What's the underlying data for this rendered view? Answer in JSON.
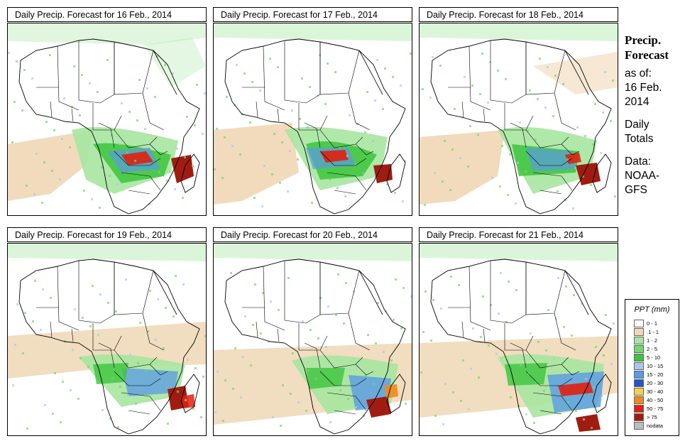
{
  "panels": [
    {
      "title": "Daily Precip. Forecast for  16 Feb., 2014"
    },
    {
      "title": "Daily Precip. Forecast for  17 Feb., 2014"
    },
    {
      "title": "Daily Precip. Forecast for  18 Feb., 2014"
    },
    {
      "title": "Daily Precip. Forecast for  19 Feb., 2014"
    },
    {
      "title": "Daily Precip. Forecast for  20 Feb., 2014"
    },
    {
      "title": "Daily Precip. Forecast for  21 Feb., 2014"
    }
  ],
  "info": {
    "title_line1": "Precip.",
    "title_line2": "Forecast",
    "asof": "as of:",
    "date_line1": "16 Feb.",
    "date_line2": "2014",
    "daily_line1": "Daily",
    "daily_line2": "Totals",
    "data_line1": "Data:",
    "data_line2": "NOAA-",
    "data_line3": "GFS"
  },
  "legend": {
    "title": "PPT (mm)",
    "items": [
      {
        "label": "0 - 1",
        "color": "#ffffff"
      },
      {
        "label": ".1 - 1",
        "color": "#f0d9b8"
      },
      {
        "label": "1 - 2",
        "color": "#a6e6a0"
      },
      {
        "label": "2 - 5",
        "color": "#6fd86f"
      },
      {
        "label": "5 - 10",
        "color": "#3cc43c"
      },
      {
        "label": "10 - 15",
        "color": "#a8c8f0"
      },
      {
        "label": "15 - 20",
        "color": "#5a9ae6"
      },
      {
        "label": "20 - 30",
        "color": "#2455c8"
      },
      {
        "label": "30 - 40",
        "color": "#f2d24a"
      },
      {
        "label": "40 - 50",
        "color": "#f08a1c"
      },
      {
        "label": "50 - 75",
        "color": "#e02010"
      },
      {
        "label": "> 75",
        "color": "#a01c10"
      },
      {
        "label": "nodata",
        "color": "#bdbdbd"
      }
    ]
  }
}
